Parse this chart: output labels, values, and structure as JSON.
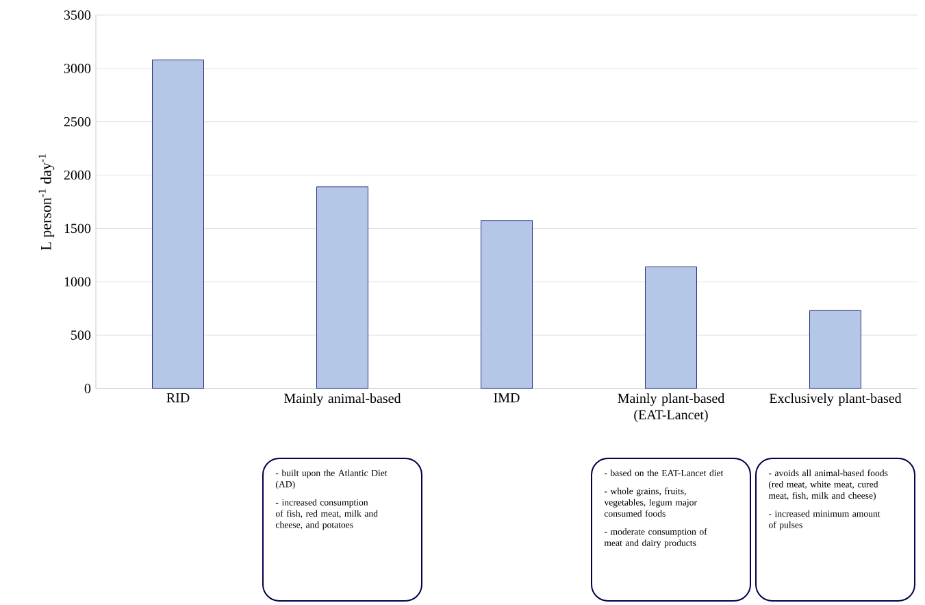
{
  "chart_data": {
    "type": "bar",
    "ylabel": "L person$^{-1}$ day$^{-1}$",
    "categories": [
      "RID",
      "Mainly animal-based",
      "IMD",
      "Mainly plant-based (EAT-Lancet)",
      "Exclusively plant-based"
    ],
    "values": [
      3080,
      1890,
      1575,
      1140,
      730
    ],
    "color": "#b4c7e7",
    "ylim": [
      0,
      3500
    ],
    "yticks": [
      0,
      500,
      1000,
      1500,
      2000,
      2500,
      3000,
      3500
    ],
    "grid": "y",
    "annotations": [
      "- built upon the Atlantic Diet (AD)",
      "- increased consumption of fish, red meat, milk and cheese, and potatoes",
      "- based on the EAT-Lancet diet",
      "- whole grains, fruits, vegetables, legum major consumed foods",
      "- moderate consumption of meat and dairy products",
      "- avoids all animal-based foods (red meat, white meat, cured meat, fish, milk and cheese)",
      "- increased minimum amount of pulses"
    ]
  }
}
